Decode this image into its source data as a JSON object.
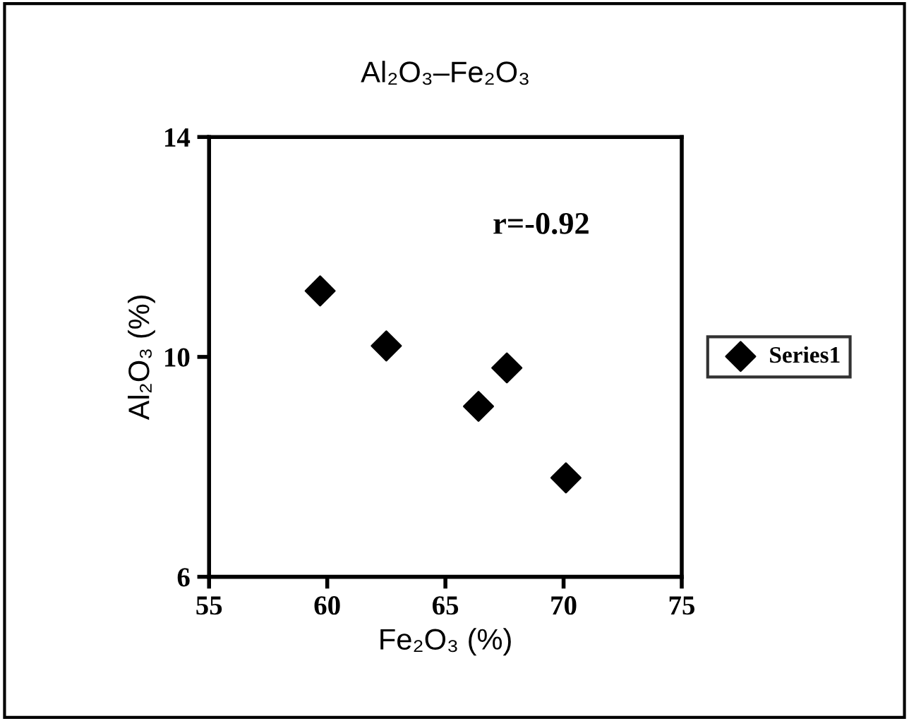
{
  "chart_data": {
    "type": "scatter",
    "title": "Al₂O₃–Fe₂O₃",
    "xlabel": "Fe₂O₃ (%)",
    "ylabel": "Al₂O₃ (%)",
    "x": [
      59.7,
      62.5,
      66.4,
      67.6,
      70.1
    ],
    "series": [
      {
        "name": "Series1",
        "color": "#000000",
        "values": [
          11.2,
          10.2,
          9.1,
          9.8,
          7.8
        ]
      }
    ],
    "xlim": [
      55,
      75
    ],
    "xticks": [
      55,
      60,
      65,
      70,
      75
    ],
    "ylim": [
      6,
      14
    ],
    "yticks": [
      6,
      10,
      14
    ],
    "annotations": [
      "r=-0.92"
    ],
    "marker": "diamond",
    "legend": "right",
    "grid": false
  }
}
